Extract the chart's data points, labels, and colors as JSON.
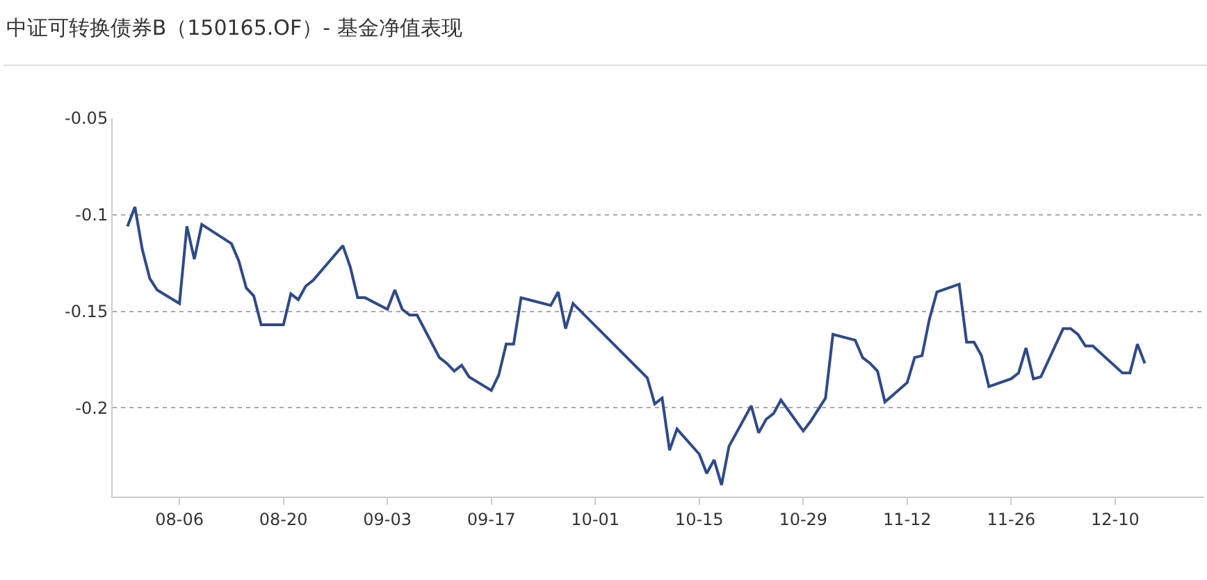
{
  "chart_data": {
    "type": "line",
    "title": "中证可转换债券B（150165.OF）- 基金净值表现",
    "x": [
      "--07-30",
      "--07-31",
      "--08-01",
      "--08-02",
      "--08-03",
      "--08-06",
      "--08-07",
      "--08-08",
      "--08-09",
      "--08-13",
      "--08-14",
      "--08-15",
      "--08-16",
      "--08-17",
      "--08-20",
      "--08-21",
      "--08-22",
      "--08-23",
      "--08-24",
      "--08-28",
      "--08-29",
      "--08-30",
      "--08-31",
      "--09-03",
      "--09-04",
      "--09-05",
      "--09-06",
      "--09-07",
      "--09-10",
      "--09-11",
      "--09-12",
      "--09-13",
      "--09-14",
      "--09-17",
      "--09-18",
      "--09-19",
      "--09-20",
      "--09-21",
      "--09-25",
      "--09-26",
      "--09-27",
      "--09-28",
      "--10-08",
      "--10-09",
      "--10-10",
      "--10-11",
      "--10-12",
      "--10-15",
      "--10-16",
      "--10-17",
      "--10-18",
      "--10-19",
      "--10-22",
      "--10-23",
      "--10-24",
      "--10-25",
      "--10-26",
      "--10-29",
      "--10-30",
      "--10-31",
      "--11-01",
      "--11-02",
      "--11-05",
      "--11-06",
      "--11-07",
      "--11-08",
      "--11-09",
      "--11-12",
      "--11-13",
      "--11-14",
      "--11-15",
      "--11-16",
      "--11-19",
      "--11-20",
      "--11-21",
      "--11-22",
      "--11-23",
      "--11-26",
      "--11-27",
      "--11-28",
      "--11-29",
      "--11-30",
      "--12-03",
      "--12-04",
      "--12-05",
      "--12-06",
      "--12-07",
      "--12-11",
      "--12-12",
      "--12-13",
      "--12-14"
    ],
    "series": [
      {
        "color": "#2f4a8a",
        "values": [
          -0.106,
          -0.096,
          -0.118,
          -0.133,
          -0.139,
          -0.146,
          -0.106,
          -0.123,
          -0.105,
          -0.115,
          -0.124,
          -0.138,
          -0.142,
          -0.157,
          -0.157,
          -0.141,
          -0.144,
          -0.137,
          -0.134,
          -0.116,
          -0.127,
          -0.143,
          -0.143,
          -0.149,
          -0.139,
          -0.149,
          -0.152,
          -0.152,
          -0.174,
          -0.177,
          -0.181,
          -0.178,
          -0.184,
          -0.191,
          -0.183,
          -0.167,
          -0.167,
          -0.143,
          -0.147,
          -0.14,
          -0.159,
          -0.146,
          -0.1845,
          -0.198,
          -0.195,
          -0.222,
          -0.211,
          -0.224,
          -0.234,
          -0.227,
          -0.24,
          -0.22,
          -0.199,
          -0.213,
          -0.206,
          -0.203,
          -0.196,
          -0.212,
          -0.207,
          -0.201,
          -0.195,
          -0.162,
          -0.165,
          -0.174,
          -0.177,
          -0.181,
          -0.197,
          -0.187,
          -0.174,
          -0.173,
          -0.154,
          -0.14,
          -0.136,
          -0.166,
          -0.166,
          -0.173,
          -0.189,
          -0.185,
          -0.182,
          -0.169,
          -0.185,
          -0.184,
          -0.159,
          -0.159,
          -0.162,
          -0.168,
          -0.168,
          -0.182,
          -0.182,
          -0.167,
          -0.177
        ]
      }
    ],
    "xlim": [
      "--07-28",
      "--12-22"
    ],
    "xticks": [
      {
        "value": "--08-06",
        "label": "08-06"
      },
      {
        "value": "--08-20",
        "label": "08-20"
      },
      {
        "value": "--09-03",
        "label": "09-03"
      },
      {
        "value": "--09-17",
        "label": "09-17"
      },
      {
        "value": "--10-01",
        "label": "10-01"
      },
      {
        "value": "--10-15",
        "label": "10-15"
      },
      {
        "value": "--10-29",
        "label": "10-29"
      },
      {
        "value": "--11-12",
        "label": "11-12"
      },
      {
        "value": "--11-26",
        "label": "11-26"
      },
      {
        "value": "--12-10",
        "label": "12-10"
      }
    ],
    "ylim": [
      -0.246,
      -0.05
    ],
    "yticks": [
      -0.05,
      -0.1,
      -0.15,
      -0.2
    ],
    "grid": "y",
    "marker": "none",
    "line_style": "solid"
  }
}
